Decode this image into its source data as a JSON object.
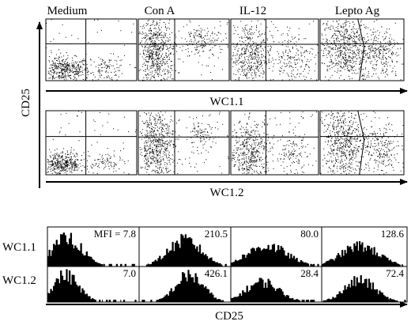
{
  "conditions": [
    "Medium",
    "Con A",
    "IL-12",
    "Lepto Ag"
  ],
  "axes": {
    "dotplot_y_label": "CD25",
    "dotplot_x_labels": [
      "WC1.1",
      "WC1.2"
    ],
    "histogram_x_label": "CD25"
  },
  "chart_data": [
    {
      "type": "scatter",
      "panel_group": "WC1.1 vs CD25 dot plots",
      "rows": "WC1.1",
      "columns": [
        "Medium",
        "Con A",
        "IL-12",
        "Lepto Ag"
      ],
      "xlabel": "WC1.1",
      "ylabel": "CD25",
      "quadrant_gates": true,
      "grid": false
    },
    {
      "type": "scatter",
      "panel_group": "WC1.2 vs CD25 dot plots",
      "rows": "WC1.2",
      "columns": [
        "Medium",
        "Con A",
        "IL-12",
        "Lepto Ag"
      ],
      "xlabel": "WC1.2",
      "ylabel": "CD25",
      "quadrant_gates": true,
      "grid": false
    },
    {
      "type": "bar",
      "panel_group": "CD25 histograms",
      "xlabel": "CD25",
      "row_labels": [
        "WC1.1",
        "WC1.2"
      ],
      "columns": [
        "Medium",
        "Con A",
        "IL-12",
        "Lepto Ag"
      ],
      "mfi_prefix": "MFI = ",
      "series": [
        {
          "name": "WC1.1",
          "mfi": [
            "7.8",
            "210.5",
            "80.0",
            "128.6"
          ]
        },
        {
          "name": "WC1.2",
          "mfi": [
            "7.0",
            "426.1",
            "28.4",
            "72.4"
          ]
        }
      ]
    }
  ]
}
